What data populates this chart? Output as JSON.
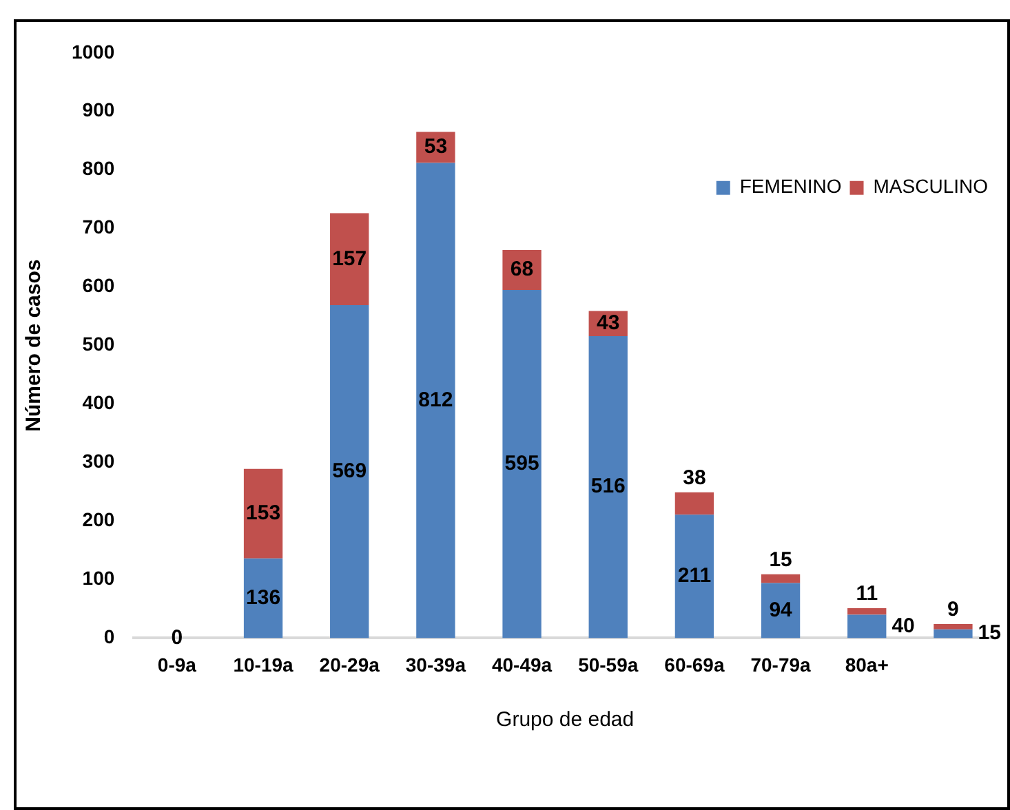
{
  "chart_data": {
    "type": "bar",
    "stacked": true,
    "xlabel": "Grupo de edad",
    "ylabel": "Número de casos",
    "categories": [
      "0-9a",
      "10-19a",
      "20-29a",
      "30-39a",
      "40-49a",
      "50-59a",
      "60-69a",
      "70-79a",
      "80a+",
      null
    ],
    "series": [
      {
        "name": "FEMENINO",
        "color": "#4f81bd",
        "values": [
          0,
          136,
          569,
          812,
          595,
          516,
          211,
          94,
          40,
          15
        ],
        "value_labels": [
          "0",
          "136",
          "569",
          "812",
          "595",
          "516",
          "211",
          "94",
          "40",
          "15"
        ]
      },
      {
        "name": "MASCULINO",
        "color": "#c0504d",
        "values": [
          0,
          153,
          157,
          53,
          68,
          43,
          38,
          15,
          11,
          9
        ],
        "value_labels": [
          null,
          "153",
          "157",
          "53",
          "68",
          "43",
          "38",
          "15",
          "11",
          "9"
        ]
      }
    ],
    "ylim": [
      0,
      1000
    ],
    "yticks": [
      0,
      100,
      200,
      300,
      400,
      500,
      600,
      700,
      800,
      900,
      1000
    ],
    "grid": false,
    "legend": "top right"
  }
}
